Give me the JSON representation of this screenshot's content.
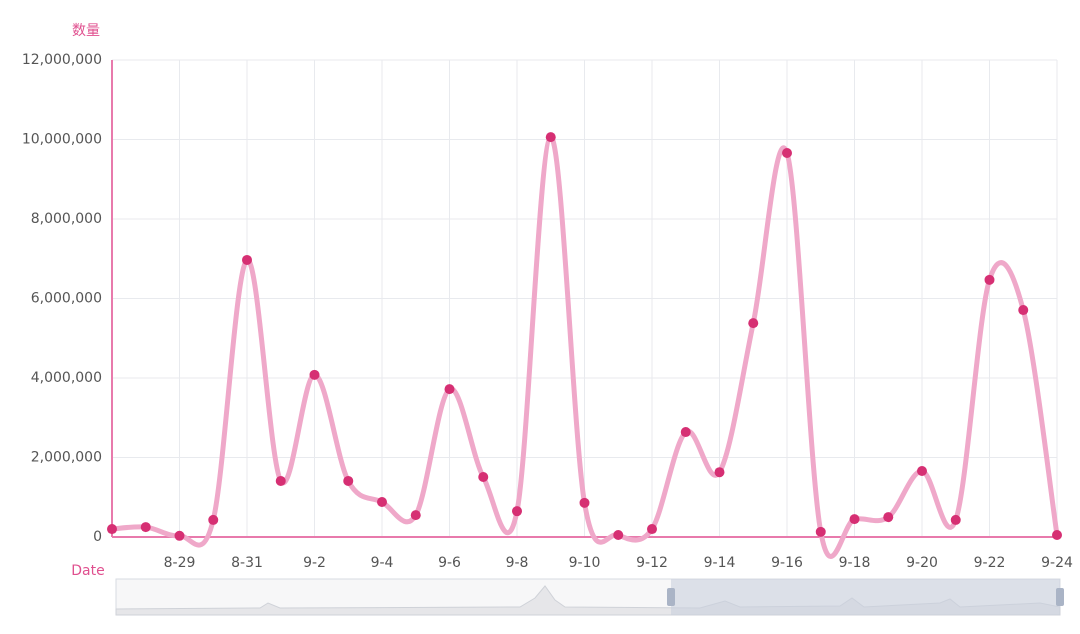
{
  "chart_data": {
    "type": "line",
    "y_label": "数量",
    "x_label": "Date",
    "categories": [
      null,
      null,
      "8-29",
      null,
      "8-31",
      null,
      "9-2",
      null,
      "9-4",
      null,
      "9-6",
      null,
      "9-8",
      null,
      "9-10",
      null,
      "9-12",
      null,
      "9-14",
      null,
      "9-16",
      null,
      "9-18",
      null,
      "9-20",
      null,
      "9-22",
      null,
      "9-24"
    ],
    "series": [
      {
        "name": "数量",
        "color": "#efa8c9",
        "marker_color": "#d62f73",
        "values": [
          200000,
          250000,
          30000,
          430000,
          6970000,
          1410000,
          4080000,
          1410000,
          880000,
          550000,
          3720000,
          1510000,
          650000,
          10060000,
          860000,
          50000,
          200000,
          2640000,
          1630000,
          5380000,
          9660000,
          130000,
          450000,
          500000,
          1660000,
          430000,
          6470000,
          5710000,
          50000
        ]
      }
    ],
    "ylim": [
      0,
      12000000
    ],
    "yticks": [
      {
        "value": 0,
        "label": "0"
      },
      {
        "value": 2000000,
        "label": "2,000,000"
      },
      {
        "value": 4000000,
        "label": "4,000,000"
      },
      {
        "value": 6000000,
        "label": "6,000,000"
      },
      {
        "value": 8000000,
        "label": "8,000,000"
      },
      {
        "value": 10000000,
        "label": "10,000,000"
      },
      {
        "value": 12000000,
        "label": "12,000,000"
      }
    ],
    "grid": true,
    "smooth": true,
    "axis_color": "#e87aac"
  }
}
